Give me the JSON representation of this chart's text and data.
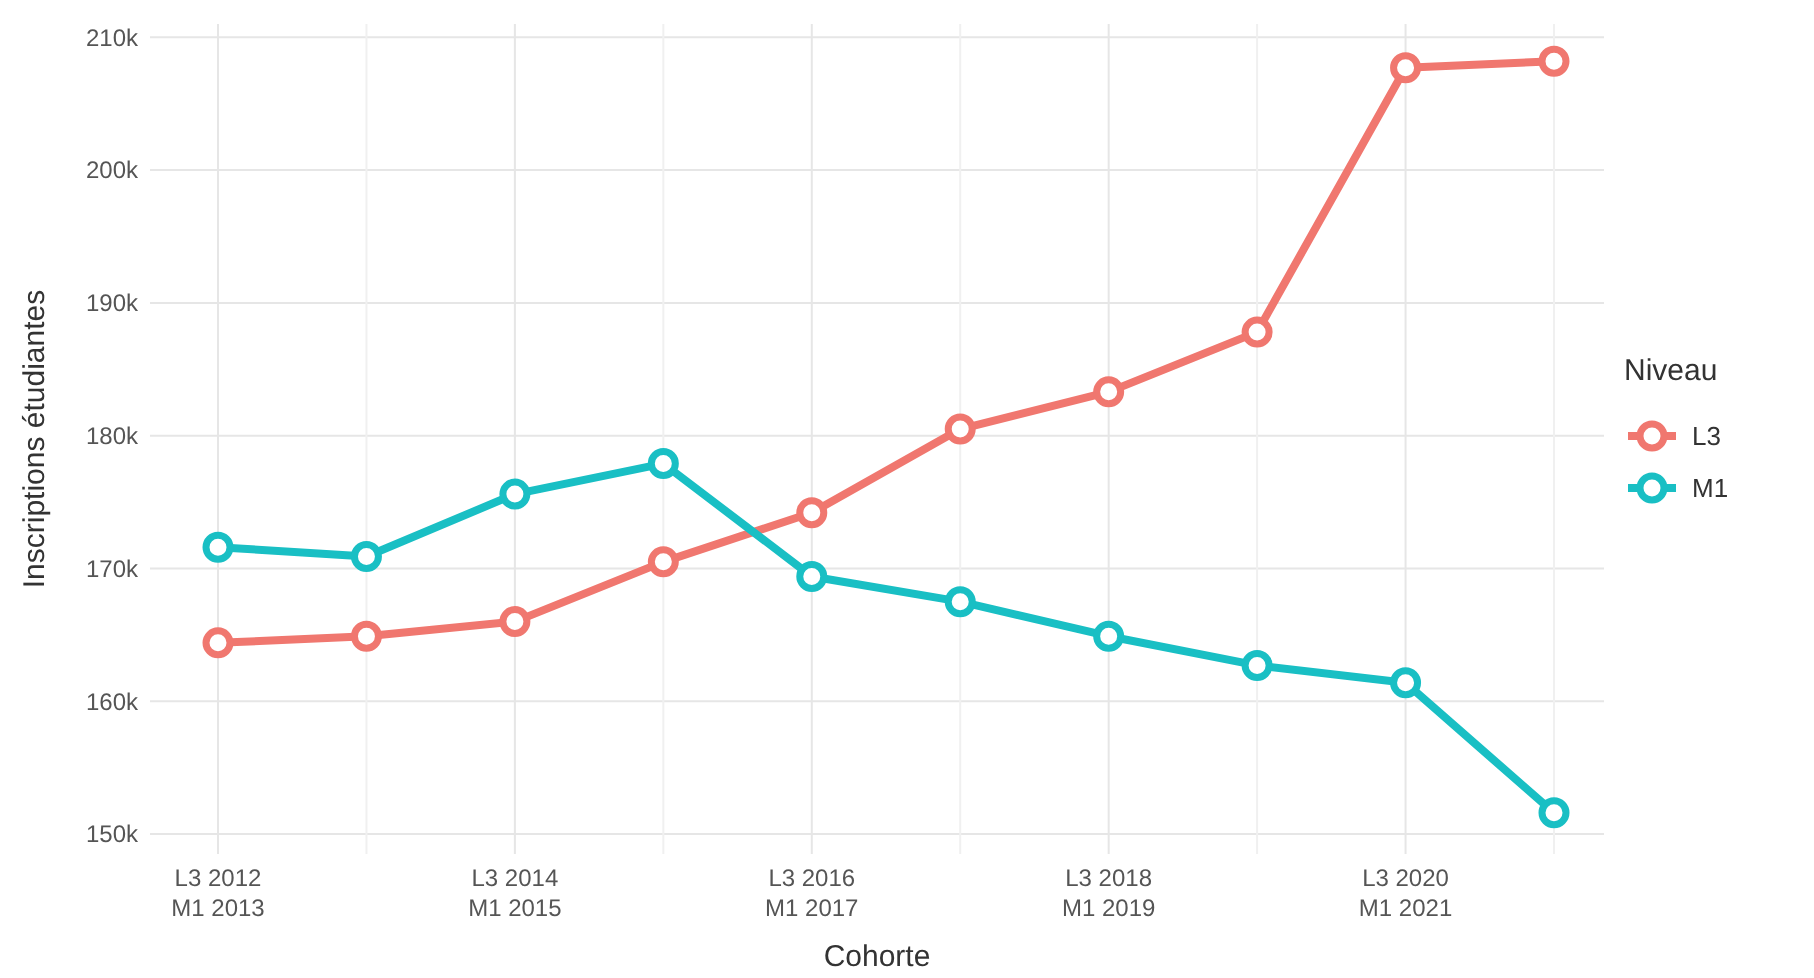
{
  "chart_data": {
    "type": "line",
    "xlabel": "Cohorte",
    "ylabel": "Inscriptions étudiantes",
    "legend_title": "Niveau",
    "legend": "right",
    "grid": true,
    "marker": "circle",
    "categories": [
      "L3 2012\nM1 2013",
      null,
      "L3 2014\nM1 2015",
      null,
      "L3 2016\nM1 2017",
      null,
      "L3 2018\nM1 2019",
      null,
      "L3 2020\nM1 2021",
      null
    ],
    "ylim": [
      148500,
      211000
    ],
    "yticks": [
      {
        "value": 150000,
        "label": "150k"
      },
      {
        "value": 160000,
        "label": "160k"
      },
      {
        "value": 170000,
        "label": "170k"
      },
      {
        "value": 180000,
        "label": "180k"
      },
      {
        "value": 190000,
        "label": "190k"
      },
      {
        "value": 200000,
        "label": "200k"
      },
      {
        "value": 210000,
        "label": "210k"
      }
    ],
    "series": [
      {
        "name": "L3",
        "color": "#f0776f",
        "values": [
          164400,
          164900,
          166000,
          170500,
          174200,
          180500,
          183300,
          187800,
          207700,
          208200
        ]
      },
      {
        "name": "M1",
        "color": "#19bfc4",
        "values": [
          171600,
          170900,
          175600,
          177900,
          169400,
          167500,
          164900,
          162700,
          161400,
          151600
        ]
      }
    ]
  }
}
